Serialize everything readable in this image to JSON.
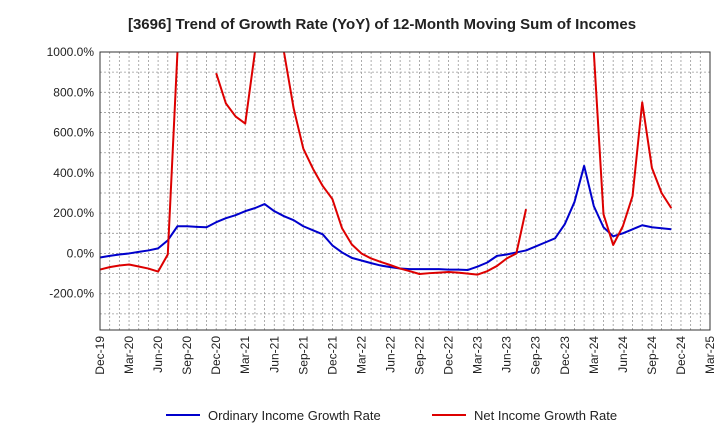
{
  "chart_data": {
    "type": "line",
    "title": "[3696]  Trend of Growth Rate (YoY) of 12-Month Moving Sum of Incomes",
    "ylim": [
      -380,
      1000
    ],
    "yticks": [
      1000,
      800,
      600,
      400,
      200,
      0,
      -200
    ],
    "ytick_labels": [
      "1000.0%",
      "800.0%",
      "600.0%",
      "400.0%",
      "200.0%",
      "0.0%",
      "-200.0%"
    ],
    "x_labels": [
      "Dec-19",
      "Mar-20",
      "Jun-20",
      "Sep-20",
      "Dec-20",
      "Mar-21",
      "Jun-21",
      "Sep-21",
      "Dec-21",
      "Mar-22",
      "Jun-22",
      "Sep-22",
      "Dec-22",
      "Mar-23",
      "Jun-23",
      "Sep-23",
      "Dec-23",
      "Mar-24",
      "Jun-24",
      "Sep-24",
      "Dec-24",
      "Mar-25"
    ],
    "grid": true,
    "legend_position": "bottom",
    "series": [
      {
        "name": "Ordinary Income Growth Rate",
        "color": "#0000cc",
        "values": [
          -20,
          -12,
          -5,
          0,
          8,
          15,
          25,
          65,
          135,
          135,
          132,
          130,
          155,
          175,
          190,
          210,
          225,
          245,
          210,
          185,
          165,
          135,
          115,
          95,
          40,
          5,
          -22,
          -35,
          -48,
          -60,
          -68,
          -75,
          -78,
          -78,
          -78,
          -78,
          -80,
          -80,
          -82,
          -65,
          -45,
          -12,
          -5,
          5,
          15,
          35,
          55,
          75,
          145,
          255,
          435,
          235,
          130,
          85,
          100,
          120,
          140,
          130,
          125,
          120
        ]
      },
      {
        "name": "Net Income Growth Rate",
        "color": "#dd0000",
        "values": [
          -80,
          -68,
          -60,
          -55,
          -65,
          -75,
          -90,
          -5,
          1000,
          null,
          null,
          null,
          895,
          745,
          680,
          645,
          1000,
          null,
          null,
          1000,
          720,
          520,
          420,
          335,
          270,
          125,
          45,
          0,
          -25,
          -42,
          -58,
          -75,
          -88,
          -102,
          -98,
          -95,
          -92,
          -95,
          -100,
          -105,
          -88,
          -62,
          -25,
          0,
          220,
          null,
          null,
          null,
          null,
          null,
          null,
          1000,
          195,
          42,
          135,
          285,
          750,
          425,
          300,
          225
        ]
      }
    ]
  }
}
